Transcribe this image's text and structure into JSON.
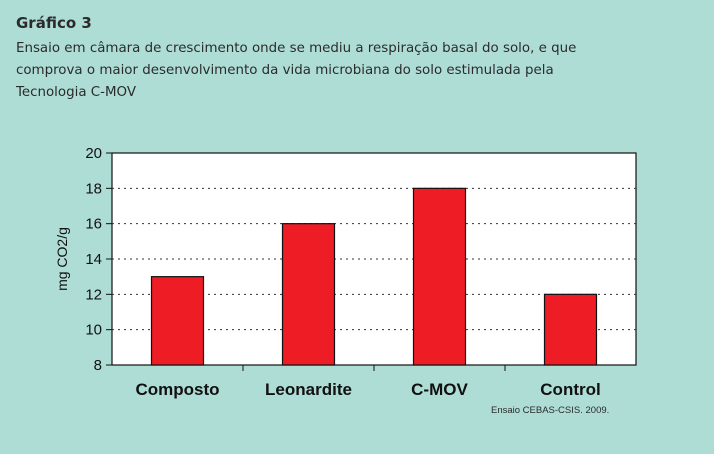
{
  "header": {
    "title": "Gráfico 3",
    "caption_lines": [
      "Ensaio em câmara de crescimento onde se mediu a respiração basal do solo, e que",
      "comprova o maior desenvolvimento da vida microbiana do solo estimulada pela",
      "Tecnologia C-MOV"
    ]
  },
  "source": "Ensaio CEBAS-CSIS. 2009.",
  "colors": {
    "background": "#aeddd6",
    "plot_background": "#ffffff",
    "bar": "#ee1c25",
    "bar_border": "#111111",
    "gridline": "#333333"
  },
  "chart_data": {
    "type": "bar",
    "title": "",
    "xlabel": "",
    "ylabel": "mg CO2/g",
    "categories": [
      "Composto",
      "Leonardite",
      "C-MOV",
      "Control"
    ],
    "values": [
      13,
      16,
      18,
      12
    ],
    "ylim": [
      8,
      20
    ],
    "yticks": [
      8,
      10,
      12,
      14,
      16,
      18,
      20
    ],
    "grid": true,
    "legend": "none"
  }
}
